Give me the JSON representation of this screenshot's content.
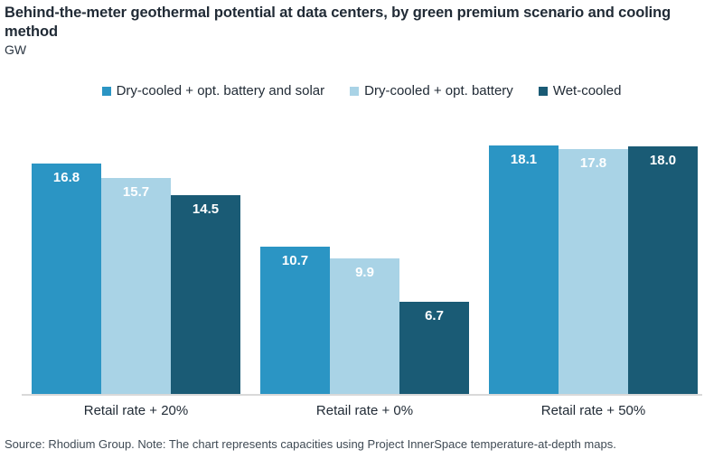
{
  "header": {
    "title": "Behind-the-meter geothermal potential at data centers, by green premium scenario and cooling method",
    "unit_label": "GW"
  },
  "chart_data": {
    "type": "bar",
    "title": "Behind-the-meter geothermal potential at data centers, by green premium scenario and cooling method",
    "ylabel": "GW",
    "xlabel": "",
    "ylim": [
      0,
      19
    ],
    "grid": false,
    "legend_position": "top-center",
    "value_labels_style": "white, inside top of bars",
    "categories": [
      "Retail rate + 20%",
      "Retail rate + 0%",
      "Retail rate + 50%"
    ],
    "series": [
      {
        "name": "Dry-cooled + opt. battery and solar",
        "color": "#2B95C4",
        "values": [
          16.8,
          10.7,
          18.1
        ],
        "labels": [
          "16.8",
          "10.7",
          "18.1"
        ]
      },
      {
        "name": "Dry-cooled + opt. battery",
        "color": "#A9D3E6",
        "values": [
          15.7,
          9.9,
          17.8
        ],
        "labels": [
          "15.7",
          "9.9",
          "17.8"
        ]
      },
      {
        "name": "Wet-cooled",
        "color": "#1A5B75",
        "values": [
          14.5,
          6.7,
          18.0
        ],
        "labels": [
          "14.5",
          "6.7",
          "18.0"
        ]
      }
    ],
    "colors": {
      "axis_line": "#D9D9D9",
      "text": "#212B36",
      "value_label_text": "#FFFFFF"
    }
  },
  "footer": {
    "source_note": "Source: Rhodium Group. Note: The chart represents capacities using Project InnerSpace temperature-at-depth maps."
  }
}
